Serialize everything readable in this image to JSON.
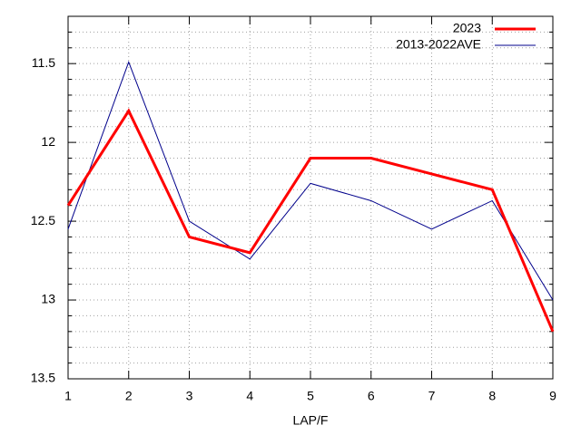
{
  "chart_data": {
    "type": "line",
    "x_label": "LAP/F",
    "x": [
      1,
      2,
      3,
      4,
      5,
      6,
      7,
      8,
      9
    ],
    "series": [
      {
        "name": "2023",
        "color": "#ff0000",
        "width": 3,
        "values": [
          12.4,
          11.8,
          12.6,
          12.7,
          12.1,
          12.1,
          12.2,
          12.3,
          13.2
        ]
      },
      {
        "name": "2013-2022AVE",
        "color": "#00008b",
        "width": 1,
        "values": [
          12.55,
          11.49,
          12.5,
          12.74,
          12.26,
          12.37,
          12.55,
          12.37,
          13.0
        ]
      }
    ],
    "xlim": [
      1,
      9
    ],
    "xticks": [
      1,
      2,
      3,
      4,
      5,
      6,
      7,
      8,
      9
    ],
    "ylim": [
      13.5,
      11.2
    ],
    "yticks": [
      11.5,
      12,
      12.5,
      13,
      13.5
    ],
    "minor_yticks": [
      11.3,
      11.4,
      11.6,
      11.7,
      11.8,
      11.9,
      12.1,
      12.2,
      12.3,
      12.4,
      12.6,
      12.7,
      12.8,
      12.9,
      13.1,
      13.2,
      13.3,
      13.4
    ],
    "grid": true,
    "legend": "top-right"
  }
}
